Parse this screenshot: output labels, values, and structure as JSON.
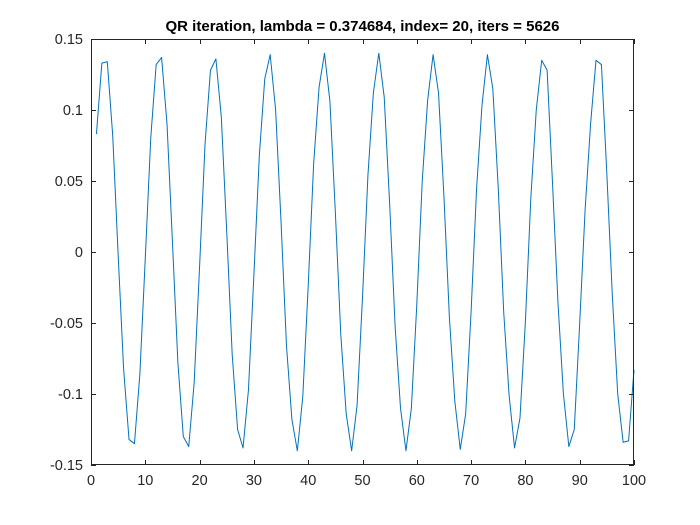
{
  "chart_data": {
    "type": "line",
    "title": "QR iteration, lambda = 0.374684, index= 20, iters = 5626",
    "xlabel": "",
    "ylabel": "",
    "xlim": [
      0,
      100
    ],
    "ylim": [
      -0.15,
      0.15
    ],
    "grid": false,
    "box": true,
    "xticks": [
      0,
      10,
      20,
      30,
      40,
      50,
      60,
      70,
      80,
      90,
      100
    ],
    "xtick_labels": [
      "0",
      "10",
      "20",
      "30",
      "40",
      "50",
      "60",
      "70",
      "80",
      "90",
      "100"
    ],
    "yticks": [
      0.15,
      0.1,
      0.05,
      0,
      -0.05,
      -0.1,
      -0.15
    ],
    "ytick_labels": [
      "0.15",
      "0.1",
      "0.05",
      "0",
      "-0.05",
      "-0.1",
      "-0.15"
    ],
    "series": [
      {
        "color": "#0072bd",
        "x": [
          1,
          2,
          3,
          4,
          5,
          6,
          7,
          8,
          9,
          10,
          11,
          12,
          13,
          14,
          15,
          16,
          17,
          18,
          19,
          20,
          21,
          22,
          23,
          24,
          25,
          26,
          27,
          28,
          29,
          30,
          31,
          32,
          33,
          34,
          35,
          36,
          37,
          38,
          39,
          40,
          41,
          42,
          43,
          44,
          45,
          46,
          47,
          48,
          49,
          50,
          51,
          52,
          53,
          54,
          55,
          56,
          57,
          58,
          59,
          60,
          61,
          62,
          63,
          64,
          65,
          66,
          67,
          68,
          69,
          70,
          71,
          72,
          73,
          74,
          75,
          76,
          77,
          78,
          79,
          80,
          81,
          82,
          83,
          84,
          85,
          86,
          87,
          88,
          89,
          90,
          91,
          92,
          93,
          94,
          95,
          96,
          97,
          98,
          99,
          100
        ],
        "y": [
          0.083,
          0.133,
          0.134,
          0.082,
          -0.002,
          -0.082,
          -0.132,
          -0.135,
          -0.086,
          -0.004,
          0.08,
          0.132,
          0.137,
          0.09,
          0.007,
          -0.078,
          -0.13,
          -0.137,
          -0.092,
          -0.01,
          0.076,
          0.128,
          0.136,
          0.095,
          0.014,
          -0.072,
          -0.125,
          -0.138,
          -0.097,
          -0.016,
          0.068,
          0.122,
          0.139,
          0.1,
          0.021,
          -0.066,
          -0.118,
          -0.14,
          -0.102,
          -0.024,
          0.062,
          0.116,
          0.14,
          0.106,
          0.028,
          -0.058,
          -0.114,
          -0.14,
          -0.108,
          -0.032,
          0.054,
          0.112,
          0.14,
          0.109,
          0.034,
          -0.052,
          -0.11,
          -0.14,
          -0.11,
          -0.037,
          0.05,
          0.107,
          0.139,
          0.112,
          0.039,
          -0.046,
          -0.105,
          -0.139,
          -0.114,
          -0.042,
          0.044,
          0.103,
          0.139,
          0.115,
          0.045,
          -0.042,
          -0.101,
          -0.138,
          -0.117,
          -0.049,
          0.038,
          0.1,
          0.135,
          0.128,
          0.048,
          -0.036,
          -0.1,
          -0.137,
          -0.125,
          -0.05,
          0.03,
          0.09,
          0.135,
          0.132,
          0.055,
          -0.03,
          -0.1,
          -0.134,
          -0.133,
          -0.083
        ]
      }
    ]
  }
}
